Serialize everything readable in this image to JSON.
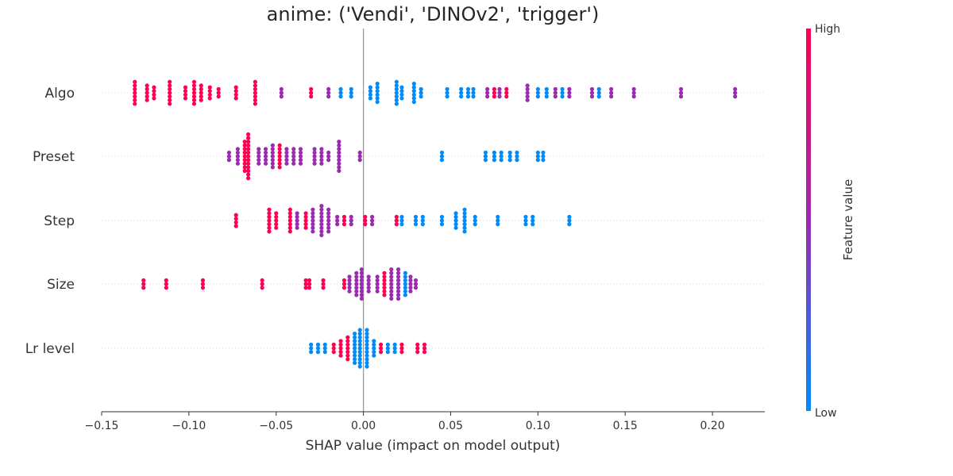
{
  "chart_data": {
    "type": "scatter",
    "title": "anime: ('Vendi', 'DINOv2', 'trigger')",
    "xlabel": "SHAP value (impact on model output)",
    "xlim": [
      -0.15,
      0.23
    ],
    "xticks": [
      "−0.15",
      "−0.10",
      "−0.05",
      "0.00",
      "0.05",
      "0.10",
      "0.15",
      "0.20"
    ],
    "xtick_values": [
      -0.15,
      -0.1,
      -0.05,
      0.0,
      0.05,
      0.1,
      0.15,
      0.2
    ],
    "colorbar": {
      "label": "Feature value",
      "high_label": "High",
      "low_label": "Low",
      "high_color": "#ff0052",
      "mid_color": "#9b2bb0",
      "low_color": "#008bfb"
    },
    "features": [
      {
        "name": "Algo",
        "clusters": [
          {
            "x": -0.131,
            "n": 7,
            "c": "high"
          },
          {
            "x": -0.124,
            "n": 5,
            "c": "high"
          },
          {
            "x": -0.12,
            "n": 4,
            "c": "high"
          },
          {
            "x": -0.111,
            "n": 7,
            "c": "high"
          },
          {
            "x": -0.102,
            "n": 4,
            "c": "high"
          },
          {
            "x": -0.097,
            "n": 7,
            "c": "high"
          },
          {
            "x": -0.093,
            "n": 5,
            "c": "high"
          },
          {
            "x": -0.088,
            "n": 4,
            "c": "high"
          },
          {
            "x": -0.083,
            "n": 3,
            "c": "high"
          },
          {
            "x": -0.073,
            "n": 4,
            "c": "high"
          },
          {
            "x": -0.062,
            "n": 7,
            "c": "high"
          },
          {
            "x": -0.047,
            "n": 3,
            "c": "mid"
          },
          {
            "x": -0.03,
            "n": 3,
            "c": "high"
          },
          {
            "x": -0.02,
            "n": 3,
            "c": "mid"
          },
          {
            "x": -0.013,
            "n": 3,
            "c": "low"
          },
          {
            "x": -0.007,
            "n": 3,
            "c": "low"
          },
          {
            "x": 0.004,
            "n": 4,
            "c": "low"
          },
          {
            "x": 0.008,
            "n": 6,
            "c": "low"
          },
          {
            "x": 0.019,
            "n": 7,
            "c": "low"
          },
          {
            "x": 0.022,
            "n": 4,
            "c": "low"
          },
          {
            "x": 0.029,
            "n": 6,
            "c": "low"
          },
          {
            "x": 0.033,
            "n": 3,
            "c": "low"
          },
          {
            "x": 0.048,
            "n": 3,
            "c": "low"
          },
          {
            "x": 0.056,
            "n": 3,
            "c": "low"
          },
          {
            "x": 0.06,
            "n": 3,
            "c": "low"
          },
          {
            "x": 0.063,
            "n": 3,
            "c": "low"
          },
          {
            "x": 0.071,
            "n": 3,
            "c": "mid"
          },
          {
            "x": 0.075,
            "n": 3,
            "c": "high"
          },
          {
            "x": 0.078,
            "n": 3,
            "c": "mid"
          },
          {
            "x": 0.082,
            "n": 3,
            "c": "high"
          },
          {
            "x": 0.094,
            "n": 5,
            "c": "mid"
          },
          {
            "x": 0.1,
            "n": 3,
            "c": "low"
          },
          {
            "x": 0.105,
            "n": 3,
            "c": "low"
          },
          {
            "x": 0.11,
            "n": 3,
            "c": "mid"
          },
          {
            "x": 0.114,
            "n": 3,
            "c": "low"
          },
          {
            "x": 0.118,
            "n": 3,
            "c": "mid"
          },
          {
            "x": 0.131,
            "n": 3,
            "c": "mid"
          },
          {
            "x": 0.135,
            "n": 3,
            "c": "low"
          },
          {
            "x": 0.142,
            "n": 3,
            "c": "mid"
          },
          {
            "x": 0.155,
            "n": 3,
            "c": "mid"
          },
          {
            "x": 0.182,
            "n": 3,
            "c": "mid"
          },
          {
            "x": 0.213,
            "n": 3,
            "c": "mid"
          }
        ]
      },
      {
        "name": "Preset",
        "clusters": [
          {
            "x": -0.077,
            "n": 3,
            "c": "mid"
          },
          {
            "x": -0.072,
            "n": 5,
            "c": "mid"
          },
          {
            "x": -0.068,
            "n": 9,
            "c": "high"
          },
          {
            "x": -0.066,
            "n": 13,
            "c": "high"
          },
          {
            "x": -0.06,
            "n": 5,
            "c": "mid"
          },
          {
            "x": -0.056,
            "n": 5,
            "c": "mid"
          },
          {
            "x": -0.052,
            "n": 7,
            "c": "mid"
          },
          {
            "x": -0.048,
            "n": 7,
            "c": "high"
          },
          {
            "x": -0.044,
            "n": 5,
            "c": "mid"
          },
          {
            "x": -0.04,
            "n": 5,
            "c": "mid"
          },
          {
            "x": -0.036,
            "n": 5,
            "c": "mid"
          },
          {
            "x": -0.028,
            "n": 5,
            "c": "mid"
          },
          {
            "x": -0.024,
            "n": 5,
            "c": "mid"
          },
          {
            "x": -0.02,
            "n": 3,
            "c": "mid"
          },
          {
            "x": -0.014,
            "n": 9,
            "c": "mid"
          },
          {
            "x": -0.002,
            "n": 3,
            "c": "mid"
          },
          {
            "x": 0.045,
            "n": 3,
            "c": "low"
          },
          {
            "x": 0.07,
            "n": 3,
            "c": "low"
          },
          {
            "x": 0.075,
            "n": 3,
            "c": "low"
          },
          {
            "x": 0.079,
            "n": 3,
            "c": "low"
          },
          {
            "x": 0.084,
            "n": 3,
            "c": "low"
          },
          {
            "x": 0.088,
            "n": 3,
            "c": "low"
          },
          {
            "x": 0.1,
            "n": 3,
            "c": "low"
          },
          {
            "x": 0.103,
            "n": 3,
            "c": "low"
          }
        ]
      },
      {
        "name": "Step",
        "clusters": [
          {
            "x": -0.073,
            "n": 4,
            "c": "high"
          },
          {
            "x": -0.054,
            "n": 7,
            "c": "high"
          },
          {
            "x": -0.05,
            "n": 5,
            "c": "high"
          },
          {
            "x": -0.042,
            "n": 7,
            "c": "high"
          },
          {
            "x": -0.038,
            "n": 5,
            "c": "mid"
          },
          {
            "x": -0.033,
            "n": 5,
            "c": "high"
          },
          {
            "x": -0.029,
            "n": 7,
            "c": "mid"
          },
          {
            "x": -0.024,
            "n": 9,
            "c": "mid"
          },
          {
            "x": -0.02,
            "n": 7,
            "c": "mid"
          },
          {
            "x": -0.015,
            "n": 3,
            "c": "mid"
          },
          {
            "x": -0.011,
            "n": 3,
            "c": "high"
          },
          {
            "x": -0.007,
            "n": 3,
            "c": "mid"
          },
          {
            "x": 0.001,
            "n": 3,
            "c": "high"
          },
          {
            "x": 0.005,
            "n": 3,
            "c": "mid"
          },
          {
            "x": 0.019,
            "n": 3,
            "c": "high"
          },
          {
            "x": 0.022,
            "n": 3,
            "c": "low"
          },
          {
            "x": 0.03,
            "n": 3,
            "c": "low"
          },
          {
            "x": 0.034,
            "n": 3,
            "c": "low"
          },
          {
            "x": 0.045,
            "n": 3,
            "c": "low"
          },
          {
            "x": 0.053,
            "n": 5,
            "c": "low"
          },
          {
            "x": 0.058,
            "n": 7,
            "c": "low"
          },
          {
            "x": 0.064,
            "n": 3,
            "c": "low"
          },
          {
            "x": 0.077,
            "n": 3,
            "c": "low"
          },
          {
            "x": 0.093,
            "n": 3,
            "c": "low"
          },
          {
            "x": 0.097,
            "n": 3,
            "c": "low"
          },
          {
            "x": 0.118,
            "n": 3,
            "c": "low"
          }
        ]
      },
      {
        "name": "Size",
        "clusters": [
          {
            "x": -0.126,
            "n": 3,
            "c": "high"
          },
          {
            "x": -0.113,
            "n": 3,
            "c": "high"
          },
          {
            "x": -0.092,
            "n": 3,
            "c": "high"
          },
          {
            "x": -0.058,
            "n": 3,
            "c": "high"
          },
          {
            "x": -0.033,
            "n": 3,
            "c": "high"
          },
          {
            "x": -0.031,
            "n": 3,
            "c": "high"
          },
          {
            "x": -0.023,
            "n": 3,
            "c": "high"
          },
          {
            "x": -0.011,
            "n": 3,
            "c": "high"
          },
          {
            "x": -0.008,
            "n": 5,
            "c": "mid"
          },
          {
            "x": -0.004,
            "n": 7,
            "c": "mid"
          },
          {
            "x": -0.001,
            "n": 9,
            "c": "mid"
          },
          {
            "x": 0.003,
            "n": 5,
            "c": "mid"
          },
          {
            "x": 0.008,
            "n": 5,
            "c": "mid"
          },
          {
            "x": 0.012,
            "n": 7,
            "c": "high"
          },
          {
            "x": 0.016,
            "n": 9,
            "c": "mid"
          },
          {
            "x": 0.02,
            "n": 9,
            "c": "mid"
          },
          {
            "x": 0.024,
            "n": 7,
            "c": "low"
          },
          {
            "x": 0.027,
            "n": 5,
            "c": "mid"
          },
          {
            "x": 0.03,
            "n": 3,
            "c": "mid"
          }
        ]
      },
      {
        "name": "Lr level",
        "clusters": [
          {
            "x": -0.03,
            "n": 3,
            "c": "low"
          },
          {
            "x": -0.026,
            "n": 3,
            "c": "low"
          },
          {
            "x": -0.022,
            "n": 3,
            "c": "low"
          },
          {
            "x": -0.017,
            "n": 3,
            "c": "high"
          },
          {
            "x": -0.013,
            "n": 5,
            "c": "high"
          },
          {
            "x": -0.009,
            "n": 7,
            "c": "high"
          },
          {
            "x": -0.005,
            "n": 9,
            "c": "low"
          },
          {
            "x": -0.002,
            "n": 11,
            "c": "low"
          },
          {
            "x": 0.002,
            "n": 11,
            "c": "low"
          },
          {
            "x": 0.006,
            "n": 5,
            "c": "low"
          },
          {
            "x": 0.01,
            "n": 3,
            "c": "high"
          },
          {
            "x": 0.014,
            "n": 3,
            "c": "low"
          },
          {
            "x": 0.018,
            "n": 3,
            "c": "low"
          },
          {
            "x": 0.022,
            "n": 3,
            "c": "high"
          },
          {
            "x": 0.031,
            "n": 3,
            "c": "high"
          },
          {
            "x": 0.035,
            "n": 3,
            "c": "high"
          }
        ]
      }
    ]
  }
}
